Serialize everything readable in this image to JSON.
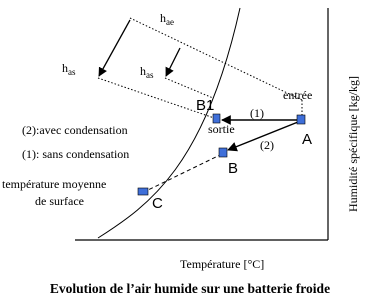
{
  "diagram": {
    "enthalpy_labels": [
      {
        "main": "h",
        "sub": "ae"
      },
      {
        "main": "h",
        "sub": "as"
      },
      {
        "main": "h",
        "sub": "as"
      }
    ],
    "points": {
      "a": "A",
      "b": "B",
      "b1": "B1",
      "c": "C"
    },
    "annotations": {
      "entree": "entrée",
      "sortie": "sortie",
      "path1": "(1)",
      "path2": "(2)"
    },
    "legend": [
      "(2):avec condensation",
      "(1): sans condensation"
    ],
    "surface_label": [
      "température moyenne",
      "de surface"
    ],
    "x_axis_label": "Température [°C]",
    "y_axis_label": "Humidité spécifique [kg/kg]",
    "caption": "Evolution de l’air humide sur une batterie froide"
  }
}
